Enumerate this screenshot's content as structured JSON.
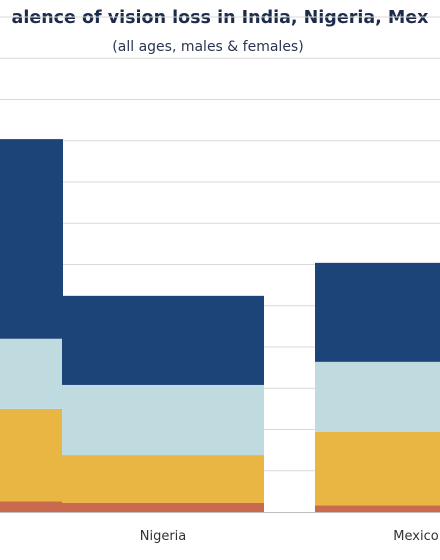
{
  "title": "alence of vision loss in India, Nigeria, Mex",
  "subtitle": "(all ages, males & females)",
  "chart_data": {
    "type": "bar",
    "stacked": true,
    "categories": [
      "",
      "Nigeria",
      "Mexico"
    ],
    "series": [
      {
        "color": "#c96a4e",
        "values": [
          1.3,
          1.1,
          0.8
        ]
      },
      {
        "color": "#e9b543",
        "values": [
          11.2,
          5.8,
          8.9
        ]
      },
      {
        "color": "#bfdbe0",
        "values": [
          8.5,
          8.5,
          8.5
        ]
      },
      {
        "color": "#1c4478",
        "values": [
          24.2,
          10.8,
          12.0
        ]
      }
    ],
    "grid": true,
    "legend": "none"
  }
}
